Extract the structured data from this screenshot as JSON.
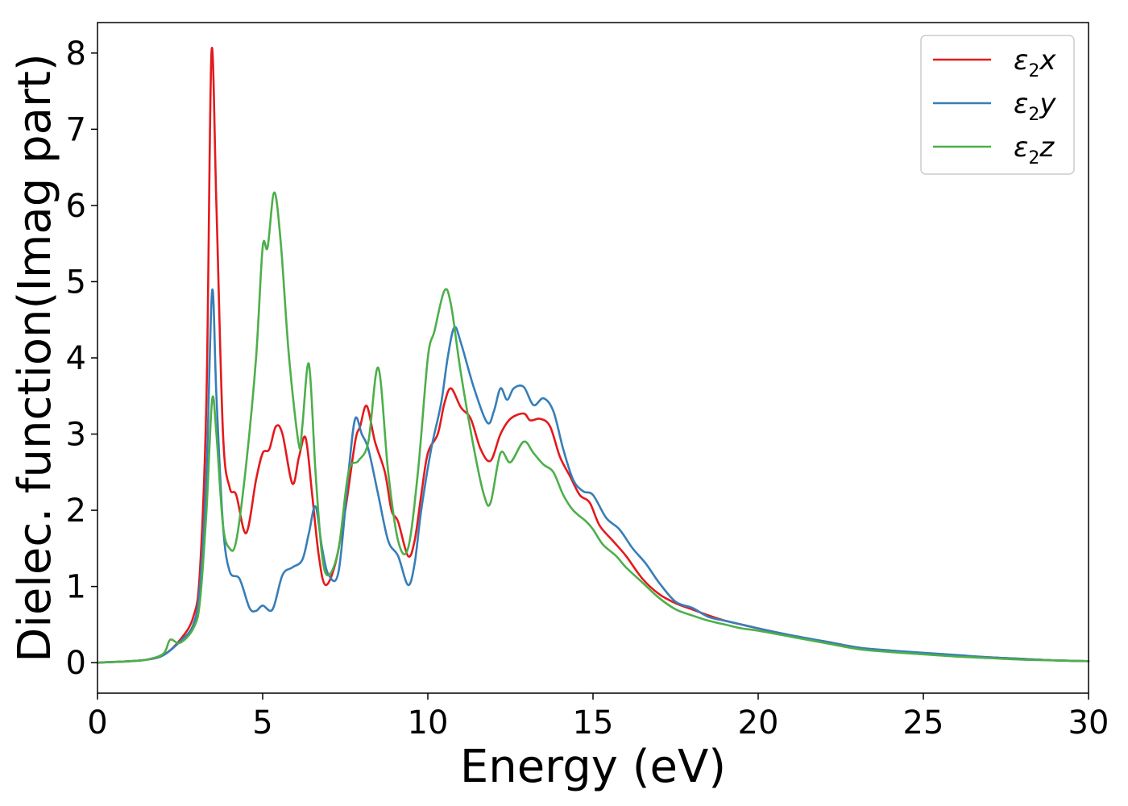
{
  "chart_data": {
    "type": "line",
    "title": "",
    "xlabel": "Energy (eV)",
    "ylabel": "Dielec. function(Imag part)",
    "xlim": [
      0,
      30
    ],
    "ylim": [
      -0.4,
      8.4
    ],
    "xticks": [
      0,
      5,
      10,
      15,
      20,
      25,
      30
    ],
    "yticks": [
      0,
      1,
      2,
      3,
      4,
      5,
      6,
      7,
      8
    ],
    "grid": false,
    "legend_position": "top-right",
    "series": [
      {
        "name": "ε₂x",
        "legend_base": "ε",
        "legend_sub": "2",
        "legend_suffix": "x",
        "color": "#e41a1c",
        "points": [
          [
            0,
            0
          ],
          [
            1,
            0.02
          ],
          [
            1.5,
            0.04
          ],
          [
            2,
            0.1
          ],
          [
            2.5,
            0.3
          ],
          [
            2.9,
            0.6
          ],
          [
            3.1,
            1.2
          ],
          [
            3.3,
            3.5
          ],
          [
            3.45,
            8.0
          ],
          [
            3.6,
            6.0
          ],
          [
            3.8,
            3.0
          ],
          [
            4.0,
            2.3
          ],
          [
            4.2,
            2.2
          ],
          [
            4.5,
            1.7
          ],
          [
            4.8,
            2.4
          ],
          [
            5.0,
            2.75
          ],
          [
            5.2,
            2.8
          ],
          [
            5.4,
            3.1
          ],
          [
            5.6,
            3.0
          ],
          [
            5.9,
            2.35
          ],
          [
            6.1,
            2.7
          ],
          [
            6.3,
            2.95
          ],
          [
            6.5,
            2.2
          ],
          [
            6.7,
            1.4
          ],
          [
            6.9,
            1.02
          ],
          [
            7.2,
            1.3
          ],
          [
            7.5,
            2.0
          ],
          [
            7.8,
            2.9
          ],
          [
            7.95,
            3.1
          ],
          [
            8.15,
            3.37
          ],
          [
            8.4,
            2.9
          ],
          [
            8.7,
            2.5
          ],
          [
            8.9,
            2.0
          ],
          [
            9.1,
            1.85
          ],
          [
            9.4,
            1.4
          ],
          [
            9.6,
            1.6
          ],
          [
            9.8,
            2.2
          ],
          [
            10.0,
            2.75
          ],
          [
            10.3,
            3.0
          ],
          [
            10.5,
            3.4
          ],
          [
            10.7,
            3.6
          ],
          [
            11.0,
            3.35
          ],
          [
            11.3,
            3.2
          ],
          [
            11.6,
            2.8
          ],
          [
            11.9,
            2.65
          ],
          [
            12.2,
            3.0
          ],
          [
            12.5,
            3.2
          ],
          [
            12.9,
            3.27
          ],
          [
            13.1,
            3.18
          ],
          [
            13.4,
            3.2
          ],
          [
            13.7,
            3.1
          ],
          [
            14.0,
            2.7
          ],
          [
            14.3,
            2.45
          ],
          [
            14.6,
            2.2
          ],
          [
            14.9,
            2.1
          ],
          [
            15.2,
            1.8
          ],
          [
            15.6,
            1.6
          ],
          [
            16.0,
            1.4
          ],
          [
            16.5,
            1.1
          ],
          [
            17.0,
            0.9
          ],
          [
            17.5,
            0.78
          ],
          [
            18.0,
            0.7
          ],
          [
            18.5,
            0.62
          ],
          [
            19.0,
            0.55
          ],
          [
            19.5,
            0.5
          ],
          [
            20.0,
            0.45
          ],
          [
            21.0,
            0.35
          ],
          [
            22.0,
            0.28
          ],
          [
            23.0,
            0.2
          ],
          [
            24.0,
            0.15
          ],
          [
            25.0,
            0.12
          ],
          [
            26.0,
            0.09
          ],
          [
            27.0,
            0.07
          ],
          [
            28.0,
            0.05
          ],
          [
            29.0,
            0.03
          ],
          [
            30.0,
            0.02
          ]
        ]
      },
      {
        "name": "ε₂y",
        "legend_base": "ε",
        "legend_sub": "2",
        "legend_suffix": "y",
        "color": "#377eb8",
        "points": [
          [
            0,
            0
          ],
          [
            1,
            0.02
          ],
          [
            1.5,
            0.04
          ],
          [
            2,
            0.1
          ],
          [
            2.5,
            0.28
          ],
          [
            2.9,
            0.5
          ],
          [
            3.1,
            1.0
          ],
          [
            3.3,
            2.5
          ],
          [
            3.47,
            4.88
          ],
          [
            3.6,
            3.5
          ],
          [
            3.8,
            1.8
          ],
          [
            4.0,
            1.2
          ],
          [
            4.3,
            1.1
          ],
          [
            4.6,
            0.72
          ],
          [
            4.8,
            0.68
          ],
          [
            5.0,
            0.75
          ],
          [
            5.3,
            0.7
          ],
          [
            5.6,
            1.15
          ],
          [
            5.9,
            1.25
          ],
          [
            6.2,
            1.35
          ],
          [
            6.4,
            1.7
          ],
          [
            6.6,
            2.05
          ],
          [
            6.8,
            1.5
          ],
          [
            7.0,
            1.15
          ],
          [
            7.3,
            1.2
          ],
          [
            7.6,
            2.5
          ],
          [
            7.8,
            3.2
          ],
          [
            8.0,
            3.0
          ],
          [
            8.2,
            2.8
          ],
          [
            8.5,
            2.2
          ],
          [
            8.8,
            1.6
          ],
          [
            9.1,
            1.4
          ],
          [
            9.4,
            1.02
          ],
          [
            9.6,
            1.3
          ],
          [
            9.8,
            2.0
          ],
          [
            10.1,
            2.8
          ],
          [
            10.4,
            3.4
          ],
          [
            10.6,
            4.0
          ],
          [
            10.8,
            4.4
          ],
          [
            11.0,
            4.2
          ],
          [
            11.4,
            3.6
          ],
          [
            11.8,
            3.15
          ],
          [
            12.0,
            3.3
          ],
          [
            12.2,
            3.6
          ],
          [
            12.4,
            3.45
          ],
          [
            12.6,
            3.6
          ],
          [
            12.9,
            3.62
          ],
          [
            13.2,
            3.38
          ],
          [
            13.5,
            3.47
          ],
          [
            13.8,
            3.3
          ],
          [
            14.1,
            2.8
          ],
          [
            14.4,
            2.4
          ],
          [
            14.7,
            2.25
          ],
          [
            15.0,
            2.2
          ],
          [
            15.4,
            1.9
          ],
          [
            15.8,
            1.75
          ],
          [
            16.2,
            1.5
          ],
          [
            16.6,
            1.3
          ],
          [
            17.0,
            1.05
          ],
          [
            17.5,
            0.8
          ],
          [
            18.0,
            0.72
          ],
          [
            18.5,
            0.6
          ],
          [
            19.0,
            0.55
          ],
          [
            19.5,
            0.5
          ],
          [
            20.0,
            0.45
          ],
          [
            21.0,
            0.36
          ],
          [
            22.0,
            0.28
          ],
          [
            23.0,
            0.2
          ],
          [
            24.0,
            0.16
          ],
          [
            25.0,
            0.13
          ],
          [
            26.0,
            0.1
          ],
          [
            27.0,
            0.07
          ],
          [
            28.0,
            0.05
          ],
          [
            29.0,
            0.03
          ],
          [
            30.0,
            0.02
          ]
        ]
      },
      {
        "name": "ε₂z",
        "legend_base": "ε",
        "legend_sub": "2",
        "legend_suffix": "z",
        "color": "#4daf4a",
        "points": [
          [
            0,
            0
          ],
          [
            1,
            0.02
          ],
          [
            1.5,
            0.04
          ],
          [
            2,
            0.12
          ],
          [
            2.2,
            0.3
          ],
          [
            2.5,
            0.26
          ],
          [
            2.9,
            0.45
          ],
          [
            3.1,
            0.8
          ],
          [
            3.3,
            2.0
          ],
          [
            3.47,
            3.45
          ],
          [
            3.6,
            3.0
          ],
          [
            3.8,
            1.8
          ],
          [
            4.0,
            1.5
          ],
          [
            4.2,
            1.6
          ],
          [
            4.5,
            2.6
          ],
          [
            4.8,
            4.0
          ],
          [
            5.0,
            5.45
          ],
          [
            5.15,
            5.45
          ],
          [
            5.35,
            6.17
          ],
          [
            5.55,
            5.5
          ],
          [
            5.8,
            4.0
          ],
          [
            6.1,
            2.85
          ],
          [
            6.2,
            3.1
          ],
          [
            6.4,
            3.92
          ],
          [
            6.6,
            2.5
          ],
          [
            6.8,
            1.4
          ],
          [
            7.0,
            1.15
          ],
          [
            7.3,
            1.5
          ],
          [
            7.6,
            2.5
          ],
          [
            7.9,
            2.65
          ],
          [
            8.2,
            2.9
          ],
          [
            8.5,
            3.87
          ],
          [
            8.8,
            2.5
          ],
          [
            9.1,
            1.6
          ],
          [
            9.4,
            1.5
          ],
          [
            9.7,
            2.5
          ],
          [
            10.0,
            4.0
          ],
          [
            10.2,
            4.35
          ],
          [
            10.5,
            4.88
          ],
          [
            10.7,
            4.7
          ],
          [
            11.0,
            3.8
          ],
          [
            11.4,
            2.8
          ],
          [
            11.7,
            2.2
          ],
          [
            11.9,
            2.1
          ],
          [
            12.2,
            2.75
          ],
          [
            12.5,
            2.63
          ],
          [
            12.9,
            2.9
          ],
          [
            13.2,
            2.75
          ],
          [
            13.5,
            2.6
          ],
          [
            13.8,
            2.5
          ],
          [
            14.1,
            2.2
          ],
          [
            14.4,
            2.0
          ],
          [
            14.8,
            1.85
          ],
          [
            15.0,
            1.75
          ],
          [
            15.3,
            1.55
          ],
          [
            15.7,
            1.4
          ],
          [
            16.0,
            1.25
          ],
          [
            16.5,
            1.05
          ],
          [
            17.0,
            0.85
          ],
          [
            17.5,
            0.7
          ],
          [
            18.0,
            0.62
          ],
          [
            18.5,
            0.55
          ],
          [
            19.0,
            0.5
          ],
          [
            19.5,
            0.45
          ],
          [
            20.0,
            0.42
          ],
          [
            21.0,
            0.34
          ],
          [
            22.0,
            0.26
          ],
          [
            23.0,
            0.18
          ],
          [
            24.0,
            0.14
          ],
          [
            25.0,
            0.11
          ],
          [
            26.0,
            0.08
          ],
          [
            27.0,
            0.06
          ],
          [
            28.0,
            0.04
          ],
          [
            29.0,
            0.03
          ],
          [
            30.0,
            0.02
          ]
        ]
      }
    ]
  }
}
